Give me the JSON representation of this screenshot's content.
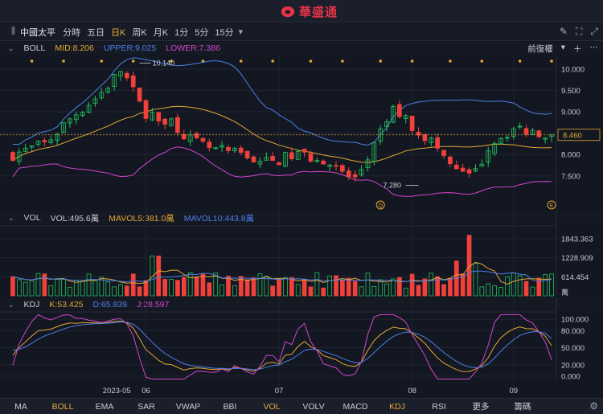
{
  "app": {
    "brand": "華盛通"
  },
  "toolbar": {
    "stock_name": "中國太平",
    "periods": [
      {
        "label": "分時",
        "active": false
      },
      {
        "label": "五日",
        "active": false
      },
      {
        "label": "日K",
        "active": true
      },
      {
        "label": "周K",
        "active": false
      },
      {
        "label": "月K",
        "active": false
      },
      {
        "label": "1分",
        "active": false
      },
      {
        "label": "5分",
        "active": false
      },
      {
        "label": "15分",
        "active": false
      }
    ],
    "icons": [
      "pencil-icon",
      "fullscreen-icon",
      "expand-icon"
    ]
  },
  "main_panel": {
    "indicator": "BOLL",
    "mid": "MID:8.206",
    "upper": "UPPER:9.025",
    "lower": "LOWER:7.386",
    "adjust": "前復權",
    "price_ticks": [
      "10.000",
      "9.500",
      "9.000",
      "8.500",
      "8.000",
      "7.500"
    ],
    "current_price": "8.460",
    "high_label": "10.140",
    "low_label": "7.280",
    "colors": {
      "up": "#22c25a",
      "down": "#f0413a",
      "mid": "#e3a733",
      "upper": "#4d7ee8",
      "lower": "#d246c8"
    }
  },
  "vol_panel": {
    "indicator": "VOL",
    "vol": "VOL:495.6萬",
    "mavol5": "MAVOL5:381.0萬",
    "mavol10": "MAVOL10:443.8萬",
    "ticks": [
      "1843.363",
      "1228.909",
      "614.454"
    ],
    "unit": "萬"
  },
  "kdj_panel": {
    "indicator": "KDJ",
    "k": "K:53.425",
    "d": "D:65.839",
    "j": "J:28.597",
    "ticks": [
      "100.000",
      "80.000",
      "50.000",
      "20.000",
      "0.000"
    ]
  },
  "x_labels": [
    "2023-05",
    "06",
    "07",
    "08",
    "09"
  ],
  "bottom_tabs": [
    {
      "label": "MA",
      "active": false
    },
    {
      "label": "BOLL",
      "active": true
    },
    {
      "label": "EMA",
      "active": false
    },
    {
      "label": "SAR",
      "active": false
    },
    {
      "label": "VWAP",
      "active": false
    },
    {
      "label": "BBI",
      "active": false
    },
    {
      "label": "VOL",
      "active": true
    },
    {
      "label": "VOLV",
      "active": false
    },
    {
      "label": "MACD",
      "active": false
    },
    {
      "label": "KDJ",
      "active": true
    },
    {
      "label": "RSI",
      "active": false
    },
    {
      "label": "更多",
      "active": false
    },
    {
      "label": "籌碼",
      "active": false
    }
  ],
  "chart_data": {
    "type": "candlestick",
    "title": "中國太平",
    "x_labels": [
      "2023-05",
      "06",
      "07",
      "08",
      "09"
    ],
    "ylim": [
      7.1,
      10.3
    ],
    "high_marker": 10.14,
    "low_marker": 7.28,
    "last_price": 8.46,
    "bars_count": 86,
    "series": [
      {
        "name": "MID",
        "last": 8.206
      },
      {
        "name": "UPPER",
        "last": 9.025
      },
      {
        "name": "LOWER",
        "last": 7.386
      }
    ],
    "volume": {
      "last": 495.6,
      "mavol5": 381.0,
      "mavol10": 443.8,
      "ylim": [
        0,
        2200
      ]
    },
    "kdj": {
      "k": 53.425,
      "d": 65.839,
      "j": 28.597,
      "ylim": [
        -10,
        110
      ]
    }
  }
}
